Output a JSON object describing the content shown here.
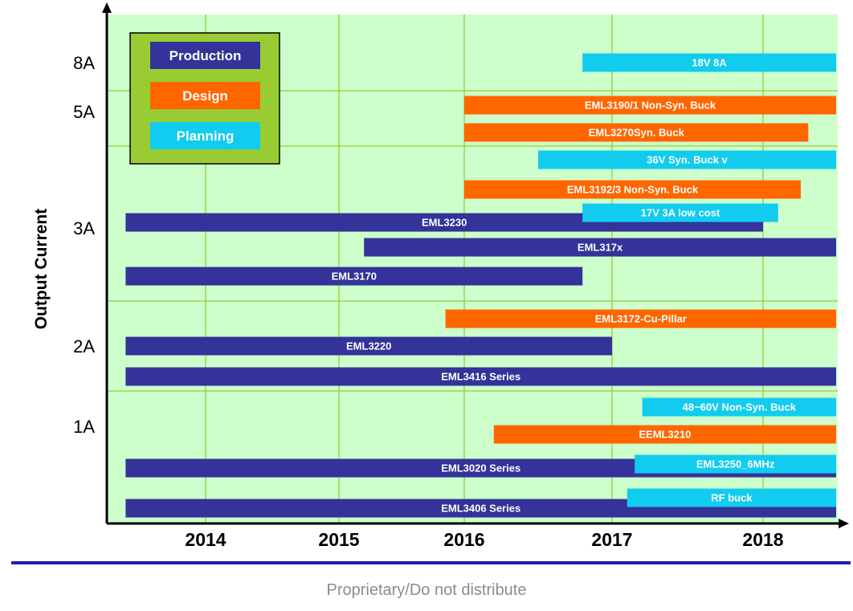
{
  "chart_data": {
    "type": "timeline",
    "ylabel": "Output Current",
    "y_ticks": [
      "8A",
      "5A",
      "3A",
      "2A",
      "1A"
    ],
    "x_ticks": [
      2014,
      2015,
      2016,
      2017,
      2018
    ],
    "colors": {
      "Production": "#333399",
      "Design": "#ff6600",
      "Planning": "#11ccee"
    },
    "legend": {
      "placement": "top-left",
      "entries": [
        "Production",
        "Design",
        "Planning"
      ]
    },
    "grid": true,
    "bars": [
      {
        "label": "18V 8A",
        "category": "Planning",
        "start": 2016.8,
        "end": 2018.5
      },
      {
        "label": "EML3190/1 Non-Syn. Buck",
        "category": "Design",
        "start": 2016.0,
        "end": 2018.5
      },
      {
        "label": "EML3270Syn. Buck",
        "category": "Design",
        "start": 2016.0,
        "end": 2018.3
      },
      {
        "label": "36V Syn. Buck v",
        "category": "Planning",
        "start": 2016.5,
        "end": 2018.5
      },
      {
        "label": "EML3192/3 Non-Syn. Buck",
        "category": "Design",
        "start": 2016.0,
        "end": 2018.25
      },
      {
        "label": "17V 3A low cost",
        "category": "Planning",
        "start": 2016.8,
        "end": 2018.1
      },
      {
        "label": "EML3230",
        "category": "Production",
        "start": 2013.4,
        "end": 2018.0
      },
      {
        "label": "EML317x",
        "category": "Production",
        "start": 2015.2,
        "end": 2018.5
      },
      {
        "label": "EML3170",
        "category": "Production",
        "start": 2013.4,
        "end": 2016.8
      },
      {
        "label": "EML3172-Cu-Pillar",
        "category": "Design",
        "start": 2015.85,
        "end": 2018.5
      },
      {
        "label": "EML3220",
        "category": "Production",
        "start": 2013.4,
        "end": 2017.0
      },
      {
        "label": "EML3416 Series",
        "category": "Production",
        "start": 2013.4,
        "end": 2018.5
      },
      {
        "label": "48~60V Non-Syn. Buck",
        "category": "Planning",
        "start": 2017.2,
        "end": 2018.5
      },
      {
        "label": "EEML3210",
        "category": "Design",
        "start": 2016.2,
        "end": 2018.5
      },
      {
        "label": "EML3020 Series",
        "category": "Production",
        "start": 2013.4,
        "end": 2018.5
      },
      {
        "label": "EML3250_6MHz",
        "category": "Planning",
        "start": 2017.15,
        "end": 2018.5
      },
      {
        "label": "RF buck",
        "category": "Planning",
        "start": 2017.1,
        "end": 2018.5
      },
      {
        "label": "EML3406 Series",
        "category": "Production",
        "start": 2013.4,
        "end": 2018.5
      }
    ]
  },
  "footer": {
    "text": "Proprietary/Do not distribute"
  }
}
